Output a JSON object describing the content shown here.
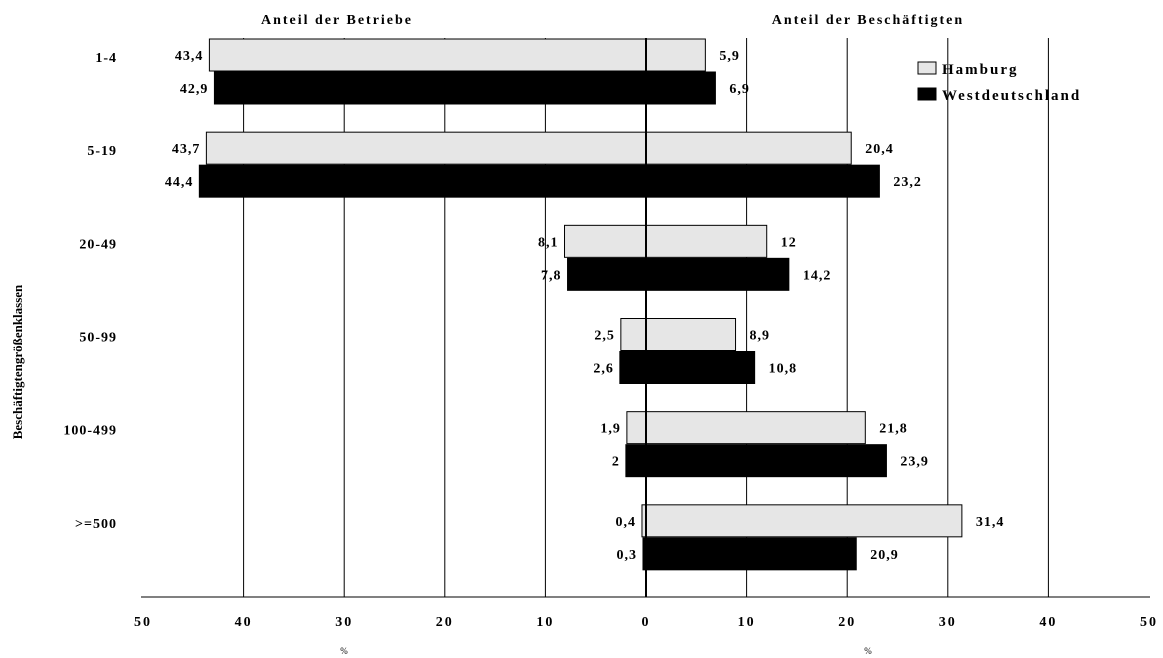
{
  "chart_data": {
    "type": "bar",
    "orientation": "horizontal-diverging",
    "y_axis_label": "Beschäftigtengrößenklassen",
    "left_header": "Anteil der Betriebe",
    "right_header": "Anteil der Beschäftigten",
    "x_unit_left": "%",
    "x_unit_right": "%",
    "x_ticks_left": [
      "50",
      "40",
      "30",
      "20",
      "10",
      "0"
    ],
    "x_ticks_right": [
      "10",
      "20",
      "30",
      "40",
      "50"
    ],
    "xlim_left": [
      0,
      50
    ],
    "xlim_right": [
      0,
      50
    ],
    "grid": true,
    "legend_position": "top-right",
    "categories": [
      "1-4",
      "5-19",
      "20-49",
      "50-99",
      "100-499",
      ">=500"
    ],
    "series": [
      {
        "name": "Hamburg",
        "color": "#e6e6e6",
        "left_values": [
          43.4,
          43.7,
          8.1,
          2.5,
          1.9,
          0.4
        ],
        "right_values": [
          5.9,
          20.4,
          12,
          8.9,
          21.8,
          31.4
        ],
        "left_labels": [
          "43,4",
          "43,7",
          "8,1",
          "2,5",
          "1,9",
          "0,4"
        ],
        "right_labels": [
          "5,9",
          "20,4",
          "12",
          "8,9",
          "21,8",
          "31,4"
        ]
      },
      {
        "name": "Westdeutschland",
        "color": "#000000",
        "left_values": [
          42.9,
          44.4,
          7.8,
          2.6,
          2.0,
          0.3
        ],
        "right_values": [
          6.9,
          23.2,
          14.2,
          10.8,
          23.9,
          20.9
        ],
        "left_labels": [
          "42,9",
          "44,4",
          "7,8",
          "2,6",
          "2",
          "0,3"
        ],
        "right_labels": [
          "6,9",
          "23,2",
          "14,2",
          "10,8",
          "23,9",
          "20,9"
        ]
      }
    ]
  }
}
